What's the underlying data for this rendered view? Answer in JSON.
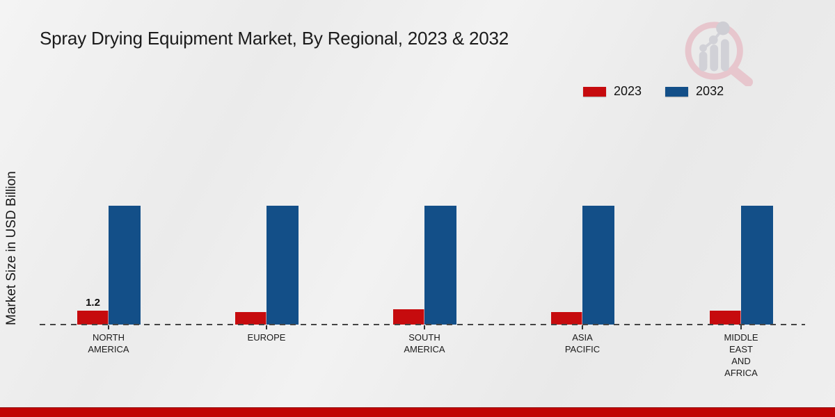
{
  "title": "Spray Drying Equipment Market, By Regional, 2023 & 2032",
  "watermark": {
    "icon": "mrfr-magnifier-bar-chart-logo"
  },
  "footer": {
    "color": "#c10404"
  },
  "chart_data": {
    "type": "bar",
    "title": "Spray Drying Equipment Market, By Regional, 2023 & 2032",
    "xlabel": "",
    "ylabel": "Market Size in USD Billion",
    "categories": [
      "North America",
      "Europe",
      "South America",
      "Asia Pacific",
      "Middle East and Africa"
    ],
    "tick_labels": [
      "NORTH\nAMERICA",
      "EUROPE",
      "SOUTH\nAMERICA",
      "ASIA\nPACIFIC",
      "MIDDLE\nEAST\nAND\nAFRICA"
    ],
    "series": [
      {
        "name": "2023",
        "color": "#c60b0e",
        "values": [
          1.2,
          1.1,
          1.3,
          1.1,
          1.2
        ],
        "data_labels": [
          "1.2",
          "",
          "",
          "",
          ""
        ]
      },
      {
        "name": "2032",
        "color": "#134f88",
        "values": [
          10.3,
          10.3,
          10.3,
          10.3,
          10.3
        ],
        "data_labels": [
          "",
          "",
          "",
          "",
          ""
        ]
      }
    ],
    "ylim": [
      0,
      11
    ],
    "grid": false,
    "y_axis_ticks_visible": false,
    "legend_position": "top-right",
    "baseline_style": "dashed"
  }
}
